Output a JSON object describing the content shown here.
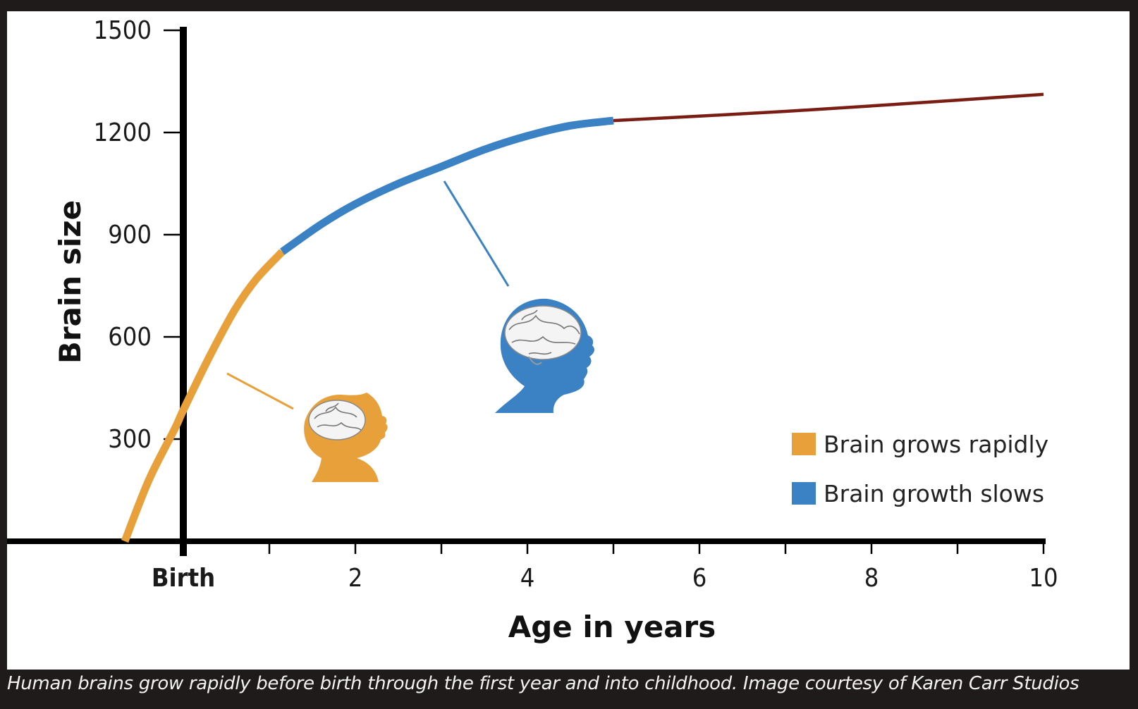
{
  "caption": "Human brains grow rapidly before birth through the first year and into childhood. Image courtesy of Karen Carr Studios",
  "chart_data": {
    "type": "line",
    "xlabel": "Age in years",
    "ylabel": "Brain size",
    "xlim": [
      -0.75,
      10
    ],
    "ylim": [
      0,
      1500
    ],
    "x_ticks": [
      0,
      1,
      2,
      3,
      4,
      5,
      6,
      7,
      8,
      9,
      10
    ],
    "x_tick_labels": [
      {
        "x": 0,
        "label": "Birth"
      },
      {
        "x": 2,
        "label": "2"
      },
      {
        "x": 4,
        "label": "4"
      },
      {
        "x": 6,
        "label": "6"
      },
      {
        "x": 8,
        "label": "8"
      },
      {
        "x": 10,
        "label": "10"
      }
    ],
    "y_ticks": [
      300,
      600,
      900,
      1200,
      1500
    ],
    "y_tick_labels": [
      "300",
      "600",
      "900",
      "1200",
      "1500"
    ],
    "grid": false,
    "legend_position": "bottom-right",
    "series": [
      {
        "name": "Brain grows rapidly",
        "color": "#e8a03a",
        "points": [
          [
            -0.68,
            0
          ],
          [
            -0.4,
            180
          ],
          [
            -0.1,
            330
          ],
          [
            0,
            385
          ],
          [
            0.3,
            540
          ],
          [
            0.6,
            680
          ],
          [
            0.85,
            770
          ],
          [
            1.15,
            850
          ]
        ]
      },
      {
        "name": "Brain growth slows",
        "color": "#3a82c4",
        "points": [
          [
            1.15,
            850
          ],
          [
            1.6,
            930
          ],
          [
            2.0,
            990
          ],
          [
            2.5,
            1050
          ],
          [
            3.0,
            1100
          ],
          [
            3.5,
            1150
          ],
          [
            4.0,
            1190
          ],
          [
            4.5,
            1220
          ],
          [
            5.0,
            1235
          ]
        ]
      },
      {
        "color": "#7a1e14",
        "points": [
          [
            5.0,
            1235
          ],
          [
            6.0,
            1248
          ],
          [
            7.0,
            1262
          ],
          [
            8.0,
            1278
          ],
          [
            9.0,
            1295
          ],
          [
            10.0,
            1312
          ]
        ]
      }
    ],
    "annotations": [
      {
        "icon": "infant-head-with-brain-icon",
        "color": "#e8a03a",
        "points_to_series": 0
      },
      {
        "icon": "child-head-with-brain-icon",
        "color": "#3a82c4",
        "points_to_series": 1
      }
    ]
  }
}
